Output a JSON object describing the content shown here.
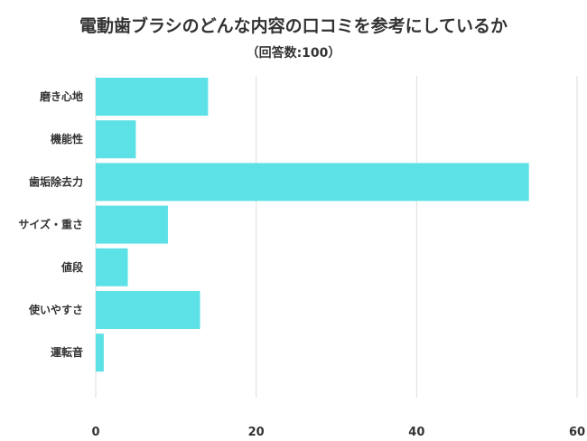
{
  "chart_data": {
    "type": "bar",
    "orientation": "horizontal",
    "title": "電動歯ブラシのどんな内容の口コミを参考にしているか",
    "subtitle": "（回答数:100）",
    "categories": [
      "磨き心地",
      "機能性",
      "歯垢除去力",
      "サイズ・重さ",
      "値段",
      "使いやすさ",
      "運転音"
    ],
    "values": [
      14,
      5,
      54,
      9,
      4,
      13,
      1
    ],
    "xlim": [
      0,
      60
    ],
    "xticks": [
      "0",
      "20",
      "40",
      "60"
    ],
    "grid": true,
    "bar_color": "#5ce1e6",
    "grid_color": "#dddddd"
  }
}
